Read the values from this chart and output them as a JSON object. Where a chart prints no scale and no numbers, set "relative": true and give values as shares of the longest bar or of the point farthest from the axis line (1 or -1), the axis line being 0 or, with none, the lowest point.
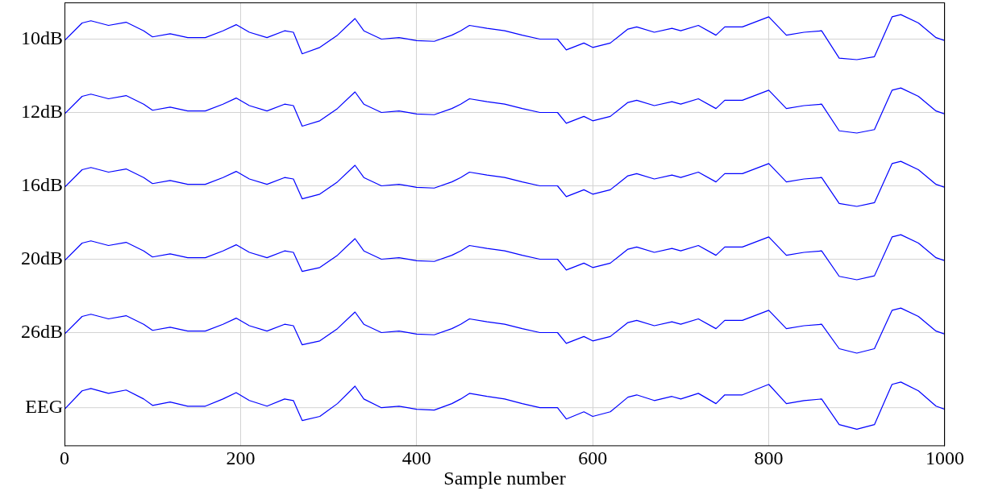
{
  "chart_data": [
    {
      "type": "line",
      "ylabel": "10dB",
      "relative": true,
      "tick_labels": false,
      "grid": "x",
      "x": [
        0,
        20,
        30,
        50,
        70,
        90,
        100,
        120,
        140,
        160,
        180,
        195,
        210,
        230,
        250,
        260,
        270,
        290,
        310,
        330,
        340,
        360,
        380,
        400,
        420,
        440,
        450,
        460,
        480,
        500,
        520,
        540,
        560,
        570,
        590,
        600,
        620,
        640,
        650,
        670,
        690,
        700,
        720,
        740,
        750,
        770,
        800,
        820,
        840,
        860,
        880,
        900,
        920,
        940,
        950,
        970,
        990,
        1000
      ],
      "xlim": [
        0,
        1000
      ],
      "xticks": [
        0,
        200,
        400,
        600,
        800,
        1000
      ],
      "ref_lines": [
        {
          "axis": "y",
          "value": 0
        }
      ],
      "series": [
        {
          "color": "#0000ff",
          "values": [
            -0.06,
            0.66,
            0.75,
            0.56,
            0.69,
            0.34,
            0.09,
            0.22,
            0.06,
            0.06,
            0.34,
            0.59,
            0.28,
            0.06,
            0.34,
            0.28,
            -0.6,
            -0.34,
            0.16,
            0.84,
            0.34,
            0,
            0.06,
            -0.06,
            -0.09,
            0.16,
            0.34,
            0.56,
            0.44,
            0.34,
            0.16,
            0,
            0,
            -0.44,
            -0.16,
            -0.34,
            -0.16,
            0.41,
            0.5,
            0.28,
            0.44,
            0.34,
            0.56,
            0.16,
            0.5,
            0.5,
            0.91,
            0.16,
            0.28,
            0.34,
            -0.78,
            -0.84,
            -0.72,
            0.91,
            1,
            0.66,
            0.06,
            -0.06
          ]
        }
      ]
    },
    {
      "type": "line",
      "ylabel": "12dB",
      "relative": true,
      "tick_labels": false,
      "grid": "x",
      "x": [
        0,
        20,
        30,
        50,
        70,
        90,
        100,
        120,
        140,
        160,
        180,
        195,
        210,
        230,
        250,
        260,
        270,
        290,
        310,
        330,
        340,
        360,
        380,
        400,
        420,
        440,
        450,
        460,
        480,
        500,
        520,
        540,
        560,
        570,
        590,
        600,
        620,
        640,
        650,
        670,
        690,
        700,
        720,
        740,
        750,
        770,
        800,
        820,
        840,
        860,
        880,
        900,
        920,
        940,
        950,
        970,
        990,
        1000
      ],
      "xlim": [
        0,
        1000
      ],
      "xticks": [
        0,
        200,
        400,
        600,
        800,
        1000
      ],
      "ref_lines": [
        {
          "axis": "y",
          "value": 0
        }
      ],
      "series": [
        {
          "color": "#0000ff",
          "values": [
            -0.06,
            0.66,
            0.75,
            0.56,
            0.69,
            0.34,
            0.09,
            0.22,
            0.06,
            0.06,
            0.34,
            0.59,
            0.28,
            0.06,
            0.34,
            0.28,
            -0.56,
            -0.34,
            0.16,
            0.84,
            0.34,
            0,
            0.06,
            -0.06,
            -0.09,
            0.16,
            0.34,
            0.56,
            0.44,
            0.34,
            0.16,
            0,
            0,
            -0.44,
            -0.16,
            -0.34,
            -0.16,
            0.41,
            0.5,
            0.28,
            0.44,
            0.34,
            0.56,
            0.16,
            0.5,
            0.5,
            0.91,
            0.16,
            0.28,
            0.34,
            -0.75,
            -0.84,
            -0.7,
            0.91,
            1,
            0.66,
            0.06,
            -0.06
          ]
        }
      ]
    },
    {
      "type": "line",
      "ylabel": "16dB",
      "relative": true,
      "tick_labels": false,
      "grid": "x",
      "x": [
        0,
        20,
        30,
        50,
        70,
        90,
        100,
        120,
        140,
        160,
        180,
        195,
        210,
        230,
        250,
        260,
        270,
        290,
        310,
        330,
        340,
        360,
        380,
        400,
        420,
        440,
        450,
        460,
        480,
        500,
        520,
        540,
        560,
        570,
        590,
        600,
        620,
        640,
        650,
        670,
        690,
        700,
        720,
        740,
        750,
        770,
        800,
        820,
        840,
        860,
        880,
        900,
        920,
        940,
        950,
        970,
        990,
        1000
      ],
      "xlim": [
        0,
        1000
      ],
      "xticks": [
        0,
        200,
        400,
        600,
        800,
        1000
      ],
      "ref_lines": [
        {
          "axis": "y",
          "value": 0
        }
      ],
      "series": [
        {
          "color": "#0000ff",
          "values": [
            -0.06,
            0.66,
            0.75,
            0.56,
            0.69,
            0.34,
            0.09,
            0.22,
            0.06,
            0.06,
            0.34,
            0.59,
            0.28,
            0.06,
            0.34,
            0.28,
            -0.53,
            -0.34,
            0.16,
            0.84,
            0.34,
            0,
            0.06,
            -0.06,
            -0.09,
            0.16,
            0.34,
            0.56,
            0.44,
            0.34,
            0.16,
            0,
            0,
            -0.44,
            -0.16,
            -0.34,
            -0.16,
            0.41,
            0.5,
            0.28,
            0.44,
            0.34,
            0.56,
            0.16,
            0.5,
            0.5,
            0.91,
            0.16,
            0.28,
            0.34,
            -0.72,
            -0.84,
            -0.69,
            0.91,
            1,
            0.66,
            0.06,
            -0.06
          ]
        }
      ]
    },
    {
      "type": "line",
      "ylabel": "20dB",
      "relative": true,
      "tick_labels": false,
      "grid": "x",
      "x": [
        0,
        20,
        30,
        50,
        70,
        90,
        100,
        120,
        140,
        160,
        180,
        195,
        210,
        230,
        250,
        260,
        270,
        290,
        310,
        330,
        340,
        360,
        380,
        400,
        420,
        440,
        450,
        460,
        480,
        500,
        520,
        540,
        560,
        570,
        590,
        600,
        620,
        640,
        650,
        670,
        690,
        700,
        720,
        740,
        750,
        770,
        800,
        820,
        840,
        860,
        880,
        900,
        920,
        940,
        950,
        970,
        990,
        1000
      ],
      "xlim": [
        0,
        1000
      ],
      "xticks": [
        0,
        200,
        400,
        600,
        800,
        1000
      ],
      "ref_lines": [
        {
          "axis": "y",
          "value": 0
        }
      ],
      "series": [
        {
          "color": "#0000ff",
          "values": [
            -0.06,
            0.66,
            0.75,
            0.56,
            0.69,
            0.34,
            0.09,
            0.22,
            0.06,
            0.06,
            0.34,
            0.59,
            0.28,
            0.06,
            0.34,
            0.28,
            -0.5,
            -0.34,
            0.16,
            0.84,
            0.34,
            0,
            0.06,
            -0.06,
            -0.09,
            0.16,
            0.34,
            0.56,
            0.44,
            0.34,
            0.16,
            0,
            0,
            -0.44,
            -0.16,
            -0.34,
            -0.16,
            0.41,
            0.5,
            0.28,
            0.44,
            0.34,
            0.56,
            0.16,
            0.5,
            0.5,
            0.91,
            0.16,
            0.28,
            0.34,
            -0.7,
            -0.84,
            -0.68,
            0.91,
            1,
            0.66,
            0.06,
            -0.06
          ]
        }
      ]
    },
    {
      "type": "line",
      "ylabel": "26dB",
      "relative": true,
      "tick_labels": false,
      "grid": "x",
      "x": [
        0,
        20,
        30,
        50,
        70,
        90,
        100,
        120,
        140,
        160,
        180,
        195,
        210,
        230,
        250,
        260,
        270,
        290,
        310,
        330,
        340,
        360,
        380,
        400,
        420,
        440,
        450,
        460,
        480,
        500,
        520,
        540,
        560,
        570,
        590,
        600,
        620,
        640,
        650,
        670,
        690,
        700,
        720,
        740,
        750,
        770,
        800,
        820,
        840,
        860,
        880,
        900,
        920,
        940,
        950,
        970,
        990,
        1000
      ],
      "xlim": [
        0,
        1000
      ],
      "xticks": [
        0,
        200,
        400,
        600,
        800,
        1000
      ],
      "ref_lines": [
        {
          "axis": "y",
          "value": 0
        }
      ],
      "series": [
        {
          "color": "#0000ff",
          "values": [
            -0.06,
            0.66,
            0.75,
            0.56,
            0.69,
            0.34,
            0.09,
            0.22,
            0.06,
            0.06,
            0.34,
            0.59,
            0.28,
            0.06,
            0.34,
            0.28,
            -0.5,
            -0.34,
            0.16,
            0.84,
            0.34,
            0,
            0.06,
            -0.06,
            -0.09,
            0.16,
            0.34,
            0.56,
            0.44,
            0.34,
            0.16,
            0,
            0,
            -0.44,
            -0.16,
            -0.34,
            -0.16,
            0.41,
            0.5,
            0.28,
            0.44,
            0.34,
            0.56,
            0.16,
            0.5,
            0.5,
            0.91,
            0.16,
            0.28,
            0.34,
            -0.66,
            -0.84,
            -0.66,
            0.91,
            1,
            0.66,
            0.06,
            -0.06
          ]
        }
      ]
    },
    {
      "type": "line",
      "ylabel": "EEG",
      "relative": true,
      "tick_labels": "x",
      "grid": "x",
      "xlabel": "Sample number",
      "x": [
        0,
        20,
        30,
        50,
        70,
        90,
        100,
        120,
        140,
        160,
        180,
        195,
        210,
        230,
        250,
        260,
        270,
        290,
        310,
        330,
        340,
        360,
        380,
        400,
        420,
        440,
        450,
        460,
        480,
        500,
        520,
        540,
        560,
        570,
        590,
        600,
        620,
        640,
        650,
        670,
        690,
        700,
        720,
        740,
        750,
        770,
        800,
        820,
        840,
        860,
        880,
        900,
        920,
        940,
        950,
        970,
        990,
        1000
      ],
      "xlim": [
        0,
        1000
      ],
      "xticks": [
        0,
        200,
        400,
        600,
        800,
        1000
      ],
      "ref_lines": [
        {
          "axis": "y",
          "value": 0
        }
      ],
      "series": [
        {
          "color": "#0000ff",
          "values": [
            -0.06,
            0.66,
            0.75,
            0.56,
            0.69,
            0.34,
            0.09,
            0.22,
            0.06,
            0.06,
            0.34,
            0.59,
            0.28,
            0.06,
            0.34,
            0.28,
            -0.5,
            -0.34,
            0.16,
            0.84,
            0.34,
            0,
            0.06,
            -0.06,
            -0.09,
            0.16,
            0.34,
            0.56,
            0.44,
            0.34,
            0.16,
            0,
            0,
            -0.44,
            -0.16,
            -0.34,
            -0.16,
            0.41,
            0.5,
            0.28,
            0.44,
            0.34,
            0.56,
            0.16,
            0.5,
            0.5,
            0.91,
            0.16,
            0.28,
            0.34,
            -0.66,
            -0.84,
            -0.66,
            0.91,
            1,
            0.66,
            0.06,
            -0.06
          ]
        }
      ]
    }
  ]
}
